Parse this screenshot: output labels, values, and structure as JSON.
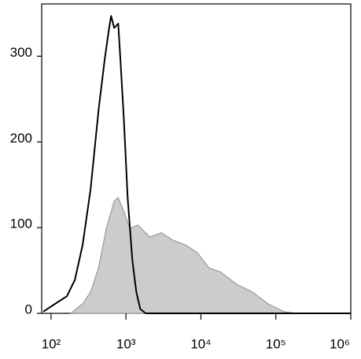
{
  "chart_data": {
    "type": "line",
    "xscale": "log",
    "xlim": [
      75,
      1000000
    ],
    "xticks": [
      {
        "value": 100,
        "label": "10²"
      },
      {
        "value": 1000,
        "label": "10³"
      },
      {
        "value": 10000,
        "label": "10⁴"
      },
      {
        "value": 100000,
        "label": "10⁵"
      },
      {
        "value": 1000000,
        "label": "10⁶"
      }
    ],
    "ylim": [
      0,
      361
    ],
    "yticks": [
      0,
      100,
      200,
      300
    ],
    "series": [
      {
        "color": "#999999",
        "fill": "#cccccc",
        "x": [
          184,
          264,
          337,
          430,
          547,
          697,
          787,
          955,
          1121,
          1442,
          2075,
          2985,
          4295,
          6170,
          8890,
          12800,
          18400,
          29900,
          48500,
          78700,
          128000,
          184000
        ],
        "values": [
          0,
          11,
          25,
          53,
          99,
          131,
          135,
          117,
          99,
          103,
          89,
          94,
          85,
          80,
          71,
          53,
          48,
          34,
          25,
          11,
          2,
          0
        ]
      },
      {
        "color": "#000000",
        "x": [
          79,
          113,
          163,
          208,
          264,
          337,
          430,
          521,
          589,
          633,
          697,
          787,
          847,
          934,
          1052,
          1217,
          1374,
          1552,
          1837,
          1000000
        ],
        "values": [
          2,
          11,
          20,
          39,
          80,
          145,
          237,
          297,
          330,
          347,
          333,
          338,
          293,
          228,
          135,
          62,
          25,
          5,
          0,
          0
        ]
      }
    ]
  }
}
